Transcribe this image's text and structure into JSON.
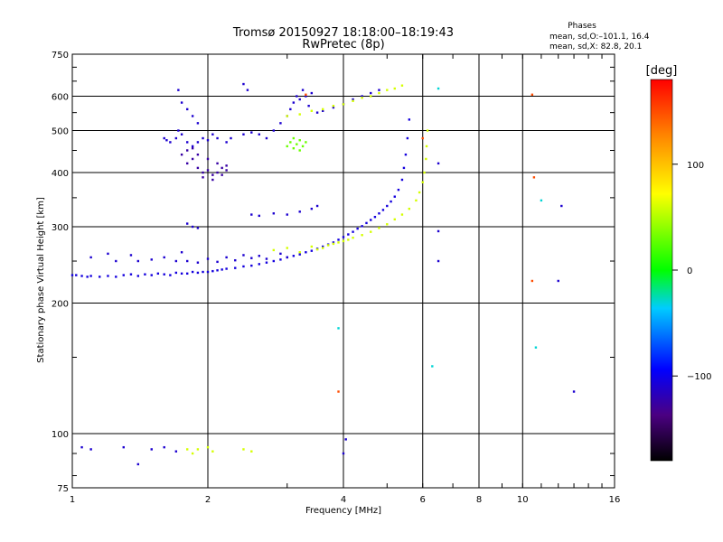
{
  "chart_data": {
    "type": "scatter",
    "title": "Tromsø 20150927 18:18:00–18:19:43",
    "subtitle": "RwPretec (8p)",
    "xlabel": "Frequency [MHz]",
    "ylabel": "Stationary phase Virtual Height [km]",
    "x_scale": "log",
    "y_scale": "log",
    "xlim": [
      1,
      16
    ],
    "ylim": [
      75,
      750
    ],
    "x_ticks": [
      1,
      2,
      4,
      6,
      8,
      10,
      16
    ],
    "y_ticks": [
      75,
      100,
      200,
      300,
      400,
      500,
      600,
      750
    ],
    "grid": true,
    "stats": {
      "title": "Phases",
      "line1": "mean, sd,O:–101.1, 16.4",
      "line2": "mean, sd,X: 82.8, 20.1"
    },
    "colorbar": {
      "label": "[deg]",
      "range": [
        -180,
        180
      ],
      "ticks": [
        100,
        0,
        -100
      ]
    },
    "series": [
      {
        "points": [
          [
            1.0,
            232,
            -105
          ],
          [
            1.02,
            232,
            -105
          ],
          [
            1.05,
            231,
            -105
          ],
          [
            1.08,
            230,
            -105
          ],
          [
            1.1,
            231,
            -105
          ],
          [
            1.15,
            230,
            -105
          ],
          [
            1.2,
            231,
            -105
          ],
          [
            1.25,
            230,
            -105
          ],
          [
            1.3,
            232,
            -105
          ],
          [
            1.35,
            233,
            -105
          ],
          [
            1.4,
            231,
            -105
          ],
          [
            1.45,
            233,
            -105
          ],
          [
            1.5,
            232,
            -105
          ],
          [
            1.55,
            234,
            -105
          ],
          [
            1.6,
            233,
            -105
          ],
          [
            1.65,
            232,
            -105
          ],
          [
            1.7,
            235,
            -105
          ],
          [
            1.75,
            234,
            -105
          ],
          [
            1.8,
            234,
            -105
          ],
          [
            1.85,
            236,
            -105
          ],
          [
            1.9,
            235,
            -105
          ],
          [
            1.95,
            236,
            -105
          ],
          [
            2.0,
            236,
            -105
          ],
          [
            2.05,
            237,
            -105
          ],
          [
            2.1,
            238,
            -105
          ],
          [
            2.15,
            239,
            -105
          ],
          [
            2.2,
            240,
            -105
          ],
          [
            2.3,
            241,
            -105
          ],
          [
            2.4,
            243,
            -105
          ],
          [
            2.5,
            244,
            -105
          ],
          [
            2.6,
            246,
            -105
          ],
          [
            2.7,
            248,
            -105
          ],
          [
            2.8,
            250,
            -105
          ],
          [
            2.9,
            252,
            -105
          ],
          [
            3.0,
            255,
            -105
          ],
          [
            3.1,
            257,
            -105
          ],
          [
            3.2,
            259,
            -105
          ],
          [
            3.3,
            262,
            -105
          ],
          [
            3.4,
            264,
            -105
          ],
          [
            3.5,
            267,
            -105
          ],
          [
            3.6,
            270,
            -105
          ],
          [
            3.7,
            273,
            -105
          ],
          [
            3.8,
            276,
            -105
          ],
          [
            3.9,
            280,
            -105
          ],
          [
            4.0,
            284,
            -105
          ],
          [
            4.1,
            288,
            -105
          ],
          [
            4.2,
            292,
            -105
          ],
          [
            4.3,
            297,
            -105
          ],
          [
            4.4,
            301,
            -105
          ],
          [
            4.5,
            306,
            -105
          ],
          [
            4.6,
            311,
            -105
          ],
          [
            4.7,
            316,
            -105
          ],
          [
            4.8,
            322,
            -105
          ],
          [
            4.9,
            328,
            -105
          ],
          [
            5.0,
            335,
            -105
          ],
          [
            5.1,
            343,
            -105
          ],
          [
            5.2,
            352,
            -105
          ],
          [
            5.3,
            365,
            -105
          ],
          [
            5.4,
            385,
            -105
          ],
          [
            5.45,
            410,
            -105
          ],
          [
            5.5,
            440,
            -105
          ],
          [
            5.55,
            480,
            -105
          ],
          [
            5.6,
            530,
            -105
          ]
        ]
      },
      {
        "points": [
          [
            1.1,
            255,
            -110
          ],
          [
            1.2,
            260,
            -110
          ],
          [
            1.25,
            250,
            -110
          ],
          [
            1.35,
            258,
            -110
          ],
          [
            1.4,
            250,
            -110
          ],
          [
            1.5,
            252,
            -110
          ],
          [
            1.6,
            255,
            -110
          ],
          [
            1.7,
            250,
            -110
          ],
          [
            1.75,
            262,
            -110
          ],
          [
            1.8,
            250,
            -110
          ],
          [
            1.9,
            248,
            -110
          ],
          [
            2.0,
            253,
            -110
          ],
          [
            2.1,
            249,
            -110
          ],
          [
            2.2,
            255,
            -110
          ],
          [
            2.3,
            251,
            -110
          ],
          [
            2.4,
            258,
            -110
          ],
          [
            2.5,
            254,
            -110
          ],
          [
            2.6,
            257,
            -110
          ],
          [
            2.7,
            253,
            -110
          ],
          [
            2.9,
            260,
            -110
          ],
          [
            3.0,
            255,
            -110
          ],
          [
            1.8,
            305,
            -110
          ],
          [
            1.85,
            300,
            -110
          ],
          [
            1.9,
            298,
            -110
          ],
          [
            2.5,
            320,
            -110
          ],
          [
            2.6,
            318,
            -110
          ],
          [
            2.8,
            322,
            -110
          ],
          [
            3.0,
            320,
            -110
          ],
          [
            3.2,
            325,
            -110
          ],
          [
            3.4,
            330,
            -110
          ],
          [
            3.5,
            335,
            -110
          ]
        ]
      },
      {
        "points": [
          [
            1.6,
            480,
            -110
          ],
          [
            1.62,
            475,
            -110
          ],
          [
            1.65,
            470,
            -110
          ],
          [
            1.7,
            480,
            -110
          ],
          [
            1.72,
            500,
            -110
          ],
          [
            1.75,
            490,
            -110
          ],
          [
            1.8,
            470,
            -110
          ],
          [
            1.85,
            460,
            -110
          ],
          [
            1.9,
            470,
            -110
          ],
          [
            1.95,
            480,
            -110
          ],
          [
            2.0,
            475,
            -110
          ],
          [
            2.05,
            490,
            -110
          ],
          [
            2.1,
            480,
            -110
          ],
          [
            2.2,
            470,
            -110
          ],
          [
            2.25,
            480,
            -110
          ],
          [
            2.4,
            490,
            -110
          ],
          [
            2.5,
            495,
            -110
          ],
          [
            2.6,
            490,
            -110
          ],
          [
            2.7,
            480,
            -110
          ],
          [
            2.8,
            500,
            -110
          ],
          [
            2.9,
            520,
            -110
          ],
          [
            3.0,
            540,
            -110
          ],
          [
            3.05,
            560,
            -110
          ],
          [
            3.1,
            580,
            -110
          ],
          [
            3.15,
            600,
            -110
          ],
          [
            3.2,
            590,
            -110
          ],
          [
            3.25,
            620,
            -110
          ],
          [
            3.3,
            600,
            -110
          ],
          [
            3.35,
            570,
            -110
          ],
          [
            3.4,
            610,
            -110
          ],
          [
            1.72,
            620,
            -110
          ],
          [
            1.75,
            580,
            -110
          ],
          [
            1.8,
            560,
            -110
          ],
          [
            1.85,
            540,
            -110
          ],
          [
            1.9,
            520,
            -110
          ],
          [
            2.4,
            640,
            -110
          ],
          [
            2.45,
            620,
            -110
          ],
          [
            3.5,
            550,
            -110
          ],
          [
            3.6,
            555,
            -110
          ],
          [
            3.8,
            565,
            -110
          ],
          [
            4.0,
            575,
            -110
          ],
          [
            4.2,
            590,
            -110
          ],
          [
            4.4,
            600,
            -110
          ],
          [
            4.6,
            610,
            -110
          ],
          [
            4.8,
            620,
            -110
          ]
        ]
      },
      {
        "points": [
          [
            1.75,
            440,
            -125
          ],
          [
            1.8,
            420,
            -125
          ],
          [
            1.85,
            430,
            -125
          ],
          [
            1.9,
            410,
            -125
          ],
          [
            1.95,
            400,
            -125
          ],
          [
            2.0,
            405,
            -125
          ],
          [
            2.05,
            395,
            -125
          ],
          [
            2.1,
            400,
            -125
          ],
          [
            2.15,
            410,
            -125
          ],
          [
            2.2,
            405,
            -125
          ],
          [
            1.8,
            450,
            -125
          ],
          [
            1.85,
            455,
            -125
          ],
          [
            1.9,
            440,
            -125
          ],
          [
            2.0,
            430,
            -125
          ],
          [
            2.1,
            420,
            -125
          ],
          [
            2.2,
            415,
            -125
          ],
          [
            1.95,
            390,
            -125
          ],
          [
            2.05,
            385,
            -125
          ],
          [
            2.15,
            395,
            -125
          ]
        ]
      },
      {
        "points": [
          [
            2.8,
            265,
            60
          ],
          [
            3.0,
            268,
            60
          ],
          [
            3.2,
            262,
            60
          ],
          [
            3.4,
            270,
            60
          ],
          [
            3.5,
            266,
            60
          ],
          [
            3.6,
            268,
            60
          ],
          [
            3.7,
            272,
            60
          ],
          [
            3.8,
            274,
            60
          ],
          [
            3.9,
            276,
            60
          ],
          [
            4.0,
            278,
            60
          ],
          [
            4.1,
            280,
            60
          ],
          [
            4.2,
            283,
            60
          ],
          [
            4.4,
            287,
            60
          ],
          [
            4.6,
            292,
            60
          ],
          [
            4.8,
            298,
            60
          ],
          [
            5.0,
            304,
            60
          ],
          [
            5.2,
            312,
            60
          ],
          [
            5.4,
            320,
            60
          ],
          [
            5.6,
            330,
            60
          ],
          [
            5.8,
            345,
            60
          ],
          [
            5.9,
            360,
            60
          ],
          [
            6.0,
            380,
            60
          ],
          [
            6.05,
            400,
            60
          ],
          [
            6.1,
            430,
            60
          ],
          [
            6.12,
            460,
            60
          ],
          [
            6.15,
            500,
            60
          ],
          [
            3.0,
            540,
            60
          ],
          [
            3.2,
            545,
            60
          ],
          [
            3.4,
            555,
            60
          ],
          [
            3.6,
            560,
            60
          ],
          [
            3.8,
            570,
            60
          ],
          [
            4.0,
            575,
            60
          ],
          [
            4.2,
            585,
            60
          ],
          [
            4.4,
            595,
            60
          ],
          [
            4.6,
            600,
            60
          ],
          [
            4.8,
            610,
            60
          ],
          [
            5.0,
            620,
            60
          ],
          [
            5.2,
            625,
            60
          ],
          [
            5.4,
            635,
            60
          ],
          [
            1.8,
            92,
            60
          ],
          [
            1.85,
            90,
            60
          ],
          [
            1.9,
            92,
            60
          ],
          [
            2.0,
            93,
            60
          ],
          [
            2.05,
            91,
            60
          ],
          [
            2.4,
            92,
            60
          ],
          [
            2.5,
            91,
            60
          ]
        ]
      },
      {
        "points": [
          [
            3.0,
            460,
            30
          ],
          [
            3.05,
            470,
            30
          ],
          [
            3.1,
            455,
            30
          ],
          [
            3.15,
            465,
            30
          ],
          [
            3.2,
            475,
            30
          ],
          [
            3.25,
            460,
            30
          ],
          [
            3.3,
            470,
            30
          ],
          [
            3.1,
            480,
            30
          ],
          [
            3.2,
            450,
            30
          ]
        ]
      },
      {
        "points": [
          [
            1.05,
            93,
            -110
          ],
          [
            1.1,
            92,
            -110
          ],
          [
            1.3,
            93,
            -110
          ],
          [
            1.5,
            92,
            -110
          ],
          [
            1.6,
            93,
            -110
          ],
          [
            1.7,
            91,
            -110
          ],
          [
            1.4,
            85,
            -110
          ],
          [
            4.0,
            90,
            -110
          ],
          [
            4.05,
            97,
            -110
          ],
          [
            6.5,
            293,
            -110
          ],
          [
            6.5,
            420,
            -110
          ],
          [
            6.5,
            250,
            -110
          ],
          [
            13.0,
            125,
            -110
          ],
          [
            12.0,
            225,
            -110
          ],
          [
            12.2,
            335,
            -110
          ]
        ]
      },
      {
        "points": [
          [
            3.3,
            605,
            150
          ],
          [
            3.9,
            125,
            150
          ],
          [
            10.5,
            605,
            150
          ],
          [
            10.6,
            390,
            150
          ],
          [
            10.5,
            225,
            150
          ],
          [
            6.0,
            480,
            150
          ]
        ]
      },
      {
        "points": [
          [
            3.9,
            175,
            -30
          ],
          [
            6.3,
            143,
            -30
          ],
          [
            10.7,
            158,
            -30
          ],
          [
            11.0,
            345,
            -30
          ],
          [
            6.5,
            625,
            -30
          ]
        ]
      }
    ]
  }
}
